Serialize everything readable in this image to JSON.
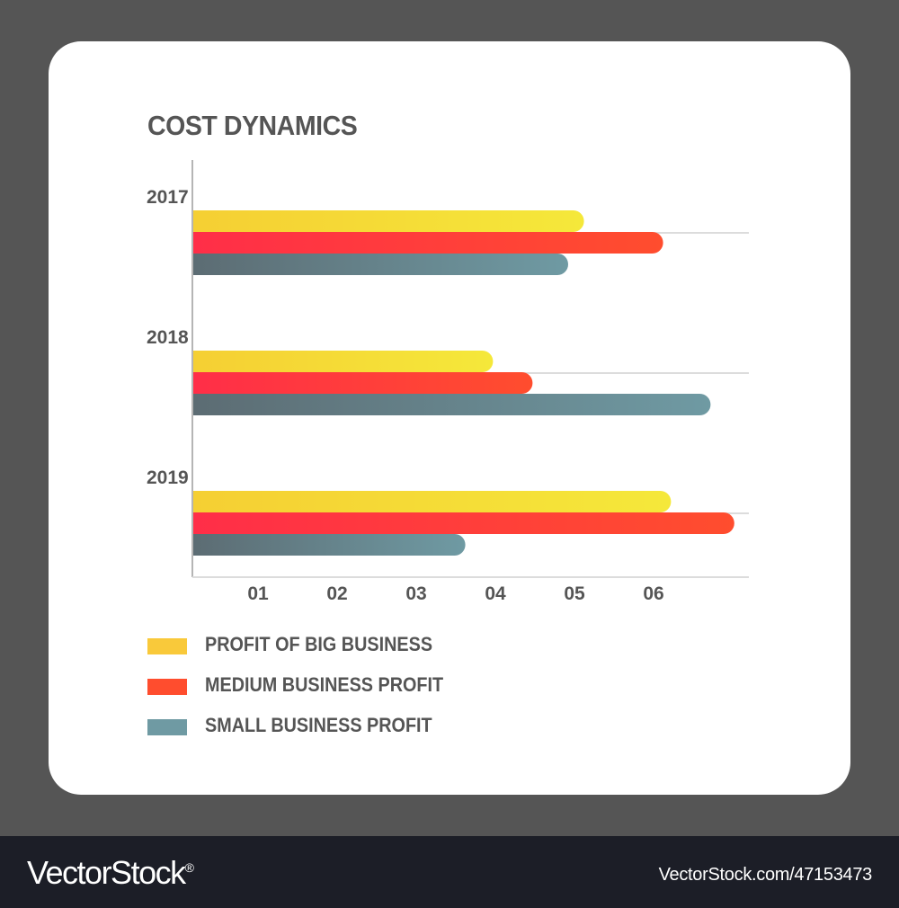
{
  "chart_data": {
    "type": "bar",
    "orientation": "horizontal",
    "title": "COST DYNAMICS",
    "categories": [
      "2017",
      "2018",
      "2019"
    ],
    "x_ticks": [
      "01",
      "02",
      "03",
      "04",
      "05",
      "06"
    ],
    "xlim": [
      0,
      7
    ],
    "series": [
      {
        "name": "PROFIT OF BIG BUSINESS",
        "values": [
          4.95,
          3.8,
          6.05
        ],
        "color": "#f5e83a",
        "color_start": "#f5cf33"
      },
      {
        "name": "MEDIUM BUSINESS PROFIT",
        "values": [
          5.95,
          4.3,
          6.85
        ],
        "color": "#ff4d2e",
        "color_start": "#ff2e48"
      },
      {
        "name": "SMALL BUSINESS PROFIT",
        "values": [
          4.75,
          6.55,
          3.45
        ],
        "color": "#6f9aa3",
        "color_start": "#5c6c73"
      }
    ],
    "legend_position": "bottom-left",
    "grid": false
  },
  "legend": {
    "items": [
      {
        "label": "PROFIT OF BIG BUSINESS",
        "color": "#f9c93a"
      },
      {
        "label": "MEDIUM BUSINESS PROFIT",
        "color": "#ff4d2e"
      },
      {
        "label": "SMALL BUSINESS PROFIT",
        "color": "#6f9aa3"
      }
    ]
  },
  "footer": {
    "brand": "VectorStock",
    "brand_mark": "®",
    "image_id": "VectorStock.com/47153473"
  }
}
